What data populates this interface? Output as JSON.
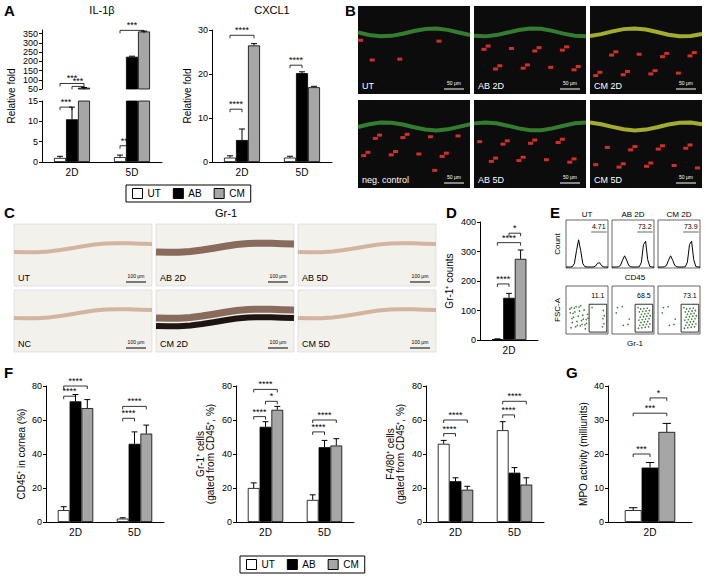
{
  "panel_labels": [
    "A",
    "B",
    "C",
    "D",
    "E",
    "F",
    "G"
  ],
  "chart_data": [
    {
      "type": "bar",
      "title": "IL-1β",
      "y_label": "Relative fold",
      "categories": [
        "2D",
        "5D"
      ],
      "ylim": [
        0,
        370
      ],
      "yticks": [
        0,
        5,
        10,
        15,
        50,
        100,
        150,
        200,
        250,
        300,
        350
      ],
      "axis_break": [
        15,
        50
      ],
      "grid": false,
      "legend": "bottom",
      "series": [
        {
          "name": "UT",
          "color": "#ffffff",
          "values": [
            1,
            1.2
          ],
          "errors": [
            0.4,
            0.5
          ]
        },
        {
          "name": "AB",
          "color": "#000000",
          "values": [
            10.5,
            225
          ],
          "errors": [
            3,
            3
          ]
        },
        {
          "name": "CM",
          "color": "#a6a6a6",
          "values": [
            57,
            362
          ],
          "errors": [
            1.5,
            2
          ]
        }
      ],
      "significance": [
        {
          "category": "2D",
          "from": "UT",
          "to": "AB",
          "y": 13.5,
          "label": "***"
        },
        {
          "category": "2D",
          "from": "AB",
          "to": "CM",
          "y": 64,
          "label": "***"
        },
        {
          "category": "2D",
          "from": "UT",
          "to": "CM",
          "y": 80,
          "label": "***"
        },
        {
          "category": "5D",
          "from": "UT",
          "to": "AB",
          "y": 4,
          "label": "***"
        },
        {
          "category": "5D",
          "from": "UT",
          "to": "CM",
          "y": 368,
          "label": "***"
        }
      ]
    },
    {
      "type": "bar",
      "title": "CXCL1",
      "y_label": "Relative fold",
      "categories": [
        "2D",
        "5D"
      ],
      "ylim": [
        0,
        30
      ],
      "yticks": [
        0,
        10,
        20,
        30
      ],
      "grid": false,
      "series": [
        {
          "name": "UT",
          "color": "#ffffff",
          "values": [
            1,
            1
          ],
          "errors": [
            0.4,
            0.3
          ]
        },
        {
          "name": "AB",
          "color": "#000000",
          "values": [
            5,
            20.2
          ],
          "errors": [
            2.5,
            0.3
          ]
        },
        {
          "name": "CM",
          "color": "#a6a6a6",
          "values": [
            26.5,
            17
          ],
          "errors": [
            0.4,
            0.2
          ]
        }
      ],
      "significance": [
        {
          "category": "2D",
          "from": "UT",
          "to": "AB",
          "y": 12,
          "label": "****"
        },
        {
          "category": "2D",
          "from": "UT",
          "to": "CM",
          "y": 28.8,
          "label": "****"
        },
        {
          "category": "5D",
          "from": "UT",
          "to": "AB",
          "y": 22,
          "label": "****"
        }
      ]
    },
    {
      "type": "bar",
      "y_label": "Gr-1⁺ counts",
      "categories": [
        "2D"
      ],
      "ylim": [
        0,
        400
      ],
      "yticks": [
        0,
        100,
        200,
        300,
        400
      ],
      "grid": false,
      "series": [
        {
          "name": "UT",
          "color": "#ffffff",
          "values": [
            3
          ],
          "errors": [
            1
          ]
        },
        {
          "name": "AB",
          "color": "#000000",
          "values": [
            143
          ],
          "errors": [
            15
          ]
        },
        {
          "name": "CM",
          "color": "#a6a6a6",
          "values": [
            275
          ],
          "errors": [
            30
          ]
        }
      ],
      "significance": [
        {
          "category": "2D",
          "from": "UT",
          "to": "AB",
          "y": 190,
          "label": "****"
        },
        {
          "category": "2D",
          "from": "UT",
          "to": "CM",
          "y": 330,
          "label": "****"
        },
        {
          "category": "2D",
          "from": "AB",
          "to": "CM",
          "y": 362,
          "label": "*"
        }
      ]
    },
    {
      "type": "bar",
      "y_label": "CD45⁺ in cornea (%)",
      "categories": [
        "2D",
        "5D"
      ],
      "ylim": [
        0,
        80
      ],
      "yticks": [
        0,
        20,
        40,
        60,
        80
      ],
      "grid": false,
      "series": [
        {
          "name": "UT",
          "color": "#ffffff",
          "values": [
            7,
            2
          ],
          "errors": [
            2,
            0.5
          ]
        },
        {
          "name": "AB",
          "color": "#000000",
          "values": [
            71,
            46
          ],
          "errors": [
            4,
            7
          ]
        },
        {
          "name": "CM",
          "color": "#a6a6a6",
          "values": [
            67,
            52
          ],
          "errors": [
            5,
            5
          ]
        }
      ],
      "significance": [
        {
          "category": "2D",
          "from": "UT",
          "to": "AB",
          "y": 74,
          "label": "****"
        },
        {
          "category": "2D",
          "from": "UT",
          "to": "CM",
          "y": 80,
          "label": "****"
        },
        {
          "category": "5D",
          "from": "UT",
          "to": "AB",
          "y": 61,
          "label": "****"
        },
        {
          "category": "5D",
          "from": "UT",
          "to": "CM",
          "y": 68,
          "label": "****"
        }
      ]
    },
    {
      "type": "bar",
      "y_label": "Gr-1⁺ cells\n(gated from CD45⁺, %)",
      "categories": [
        "2D",
        "5D"
      ],
      "ylim": [
        0,
        80
      ],
      "yticks": [
        0,
        20,
        40,
        60,
        80
      ],
      "grid": false,
      "legend": "bottom",
      "series": [
        {
          "name": "UT",
          "color": "#ffffff",
          "values": [
            20,
            13
          ],
          "errors": [
            3,
            3
          ]
        },
        {
          "name": "AB",
          "color": "#000000",
          "values": [
            56,
            44
          ],
          "errors": [
            3,
            4
          ]
        },
        {
          "name": "CM",
          "color": "#a6a6a6",
          "values": [
            66,
            45
          ],
          "errors": [
            2,
            4
          ]
        }
      ],
      "significance": [
        {
          "category": "2D",
          "from": "UT",
          "to": "AB",
          "y": 62,
          "label": "****"
        },
        {
          "category": "2D",
          "from": "AB",
          "to": "CM",
          "y": 71,
          "label": "*"
        },
        {
          "category": "2D",
          "from": "UT",
          "to": "CM",
          "y": 78,
          "label": "****"
        },
        {
          "category": "5D",
          "from": "UT",
          "to": "AB",
          "y": 53,
          "label": "****"
        },
        {
          "category": "5D",
          "from": "UT",
          "to": "CM",
          "y": 60,
          "label": "****"
        }
      ]
    },
    {
      "type": "bar",
      "y_label": "F4/80⁺ cells\n(gated from CD45⁺, %)",
      "categories": [
        "2D",
        "5D"
      ],
      "ylim": [
        0,
        80
      ],
      "yticks": [
        0,
        20,
        40,
        60,
        80
      ],
      "grid": false,
      "series": [
        {
          "name": "UT",
          "color": "#ffffff",
          "values": [
            46,
            54
          ],
          "errors": [
            2,
            5
          ]
        },
        {
          "name": "AB",
          "color": "#000000",
          "values": [
            24,
            29
          ],
          "errors": [
            2,
            3
          ]
        },
        {
          "name": "CM",
          "color": "#a6a6a6",
          "values": [
            19,
            22
          ],
          "errors": [
            2,
            4
          ]
        }
      ],
      "significance": [
        {
          "category": "2D",
          "from": "UT",
          "to": "AB",
          "y": 52,
          "label": "****"
        },
        {
          "category": "2D",
          "from": "UT",
          "to": "CM",
          "y": 60,
          "label": "****"
        },
        {
          "category": "5D",
          "from": "UT",
          "to": "AB",
          "y": 63,
          "label": "****"
        },
        {
          "category": "5D",
          "from": "UT",
          "to": "CM",
          "y": 71,
          "label": "****"
        }
      ]
    },
    {
      "type": "bar",
      "y_label": "MPO activity (milliunits)",
      "categories": [
        "2D"
      ],
      "ylim": [
        0,
        40
      ],
      "yticks": [
        0,
        10,
        20,
        30,
        40
      ],
      "grid": false,
      "series": [
        {
          "name": "UT",
          "color": "#ffffff",
          "values": [
            3.5
          ],
          "errors": [
            0.7
          ]
        },
        {
          "name": "AB",
          "color": "#000000",
          "values": [
            16
          ],
          "errors": [
            1.5
          ]
        },
        {
          "name": "CM",
          "color": "#a6a6a6",
          "values": [
            26.5
          ],
          "errors": [
            2.5
          ]
        }
      ],
      "significance": [
        {
          "category": "2D",
          "from": "UT",
          "to": "AB",
          "y": 20,
          "label": "***"
        },
        {
          "category": "2D",
          "from": "UT",
          "to": "CM",
          "y": 32,
          "label": "***"
        },
        {
          "category": "2D",
          "from": "AB",
          "to": "CM",
          "y": 36.5,
          "label": "*"
        }
      ]
    }
  ],
  "panel_B": {
    "images": [
      "UT",
      "AB 2D",
      "CM 2D",
      "neg. control",
      "AB 5D",
      "CM 5D"
    ],
    "scale_bar": "50 μm"
  },
  "panel_C": {
    "title": "Gr-1",
    "images": [
      "UT",
      "AB 2D",
      "AB 5D",
      "NC",
      "CM 2D",
      "CM 5D"
    ],
    "scale_bar": "100 μm"
  },
  "panel_E": {
    "columns": [
      "UT",
      "AB 2D",
      "CM 2D"
    ],
    "histogram": {
      "y_label": "Count",
      "x_label": "CD45",
      "gate_percent": [
        4.71,
        73.2,
        73.9
      ]
    },
    "dot_plot": {
      "y_label": "FSC-A",
      "x_label": "Gr-1",
      "gate_percent": [
        11.1,
        68.5,
        73.1
      ]
    }
  }
}
